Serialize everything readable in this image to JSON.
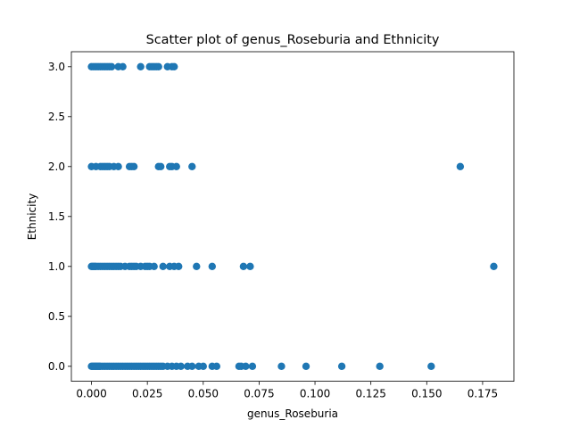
{
  "chart_data": {
    "type": "scatter",
    "title": "Scatter plot of genus_Roseburia and Ethnicity",
    "xlabel": "genus_Roseburia",
    "ylabel": "Ethnicity",
    "xlim": [
      -0.009,
      0.189
    ],
    "ylim": [
      -0.15,
      3.15
    ],
    "xticks": [
      "0.000",
      "0.025",
      "0.050",
      "0.075",
      "0.100",
      "0.125",
      "0.150",
      "0.175"
    ],
    "xtick_values": [
      0,
      0.025,
      0.05,
      0.075,
      0.1,
      0.125,
      0.15,
      0.175
    ],
    "yticks": [
      "0.0",
      "0.5",
      "1.0",
      "1.5",
      "2.0",
      "2.5",
      "3.0"
    ],
    "ytick_values": [
      0,
      0.5,
      1,
      1.5,
      2,
      2.5,
      3
    ],
    "grid": false,
    "marker_color": "#1f77b4",
    "series": [
      {
        "points": [
          [
            0.0,
            0
          ],
          [
            0.0005,
            0
          ],
          [
            0.001,
            0
          ],
          [
            0.0015,
            0
          ],
          [
            0.002,
            0
          ],
          [
            0.0025,
            0
          ],
          [
            0.003,
            0
          ],
          [
            0.0035,
            0
          ],
          [
            0.004,
            0
          ],
          [
            0.005,
            0
          ],
          [
            0.006,
            0
          ],
          [
            0.007,
            0
          ],
          [
            0.008,
            0
          ],
          [
            0.009,
            0
          ],
          [
            0.01,
            0
          ],
          [
            0.011,
            0
          ],
          [
            0.012,
            0
          ],
          [
            0.013,
            0
          ],
          [
            0.014,
            0
          ],
          [
            0.015,
            0
          ],
          [
            0.016,
            0
          ],
          [
            0.017,
            0
          ],
          [
            0.018,
            0
          ],
          [
            0.019,
            0
          ],
          [
            0.02,
            0
          ],
          [
            0.021,
            0
          ],
          [
            0.022,
            0
          ],
          [
            0.023,
            0
          ],
          [
            0.024,
            0
          ],
          [
            0.025,
            0
          ],
          [
            0.026,
            0
          ],
          [
            0.027,
            0
          ],
          [
            0.028,
            0
          ],
          [
            0.029,
            0
          ],
          [
            0.03,
            0
          ],
          [
            0.031,
            0
          ],
          [
            0.032,
            0
          ],
          [
            0.034,
            0
          ],
          [
            0.036,
            0
          ],
          [
            0.038,
            0
          ],
          [
            0.04,
            0
          ],
          [
            0.043,
            0
          ],
          [
            0.045,
            0
          ],
          [
            0.048,
            0
          ],
          [
            0.05,
            0
          ],
          [
            0.054,
            0
          ],
          [
            0.056,
            0
          ],
          [
            0.066,
            0
          ],
          [
            0.067,
            0
          ],
          [
            0.069,
            0
          ],
          [
            0.072,
            0
          ],
          [
            0.085,
            0
          ],
          [
            0.096,
            0
          ],
          [
            0.112,
            0
          ],
          [
            0.129,
            0
          ],
          [
            0.152,
            0
          ],
          [
            0.0,
            1
          ],
          [
            0.0005,
            1
          ],
          [
            0.001,
            1
          ],
          [
            0.0015,
            1
          ],
          [
            0.002,
            1
          ],
          [
            0.003,
            1
          ],
          [
            0.004,
            1
          ],
          [
            0.005,
            1
          ],
          [
            0.006,
            1
          ],
          [
            0.007,
            1
          ],
          [
            0.008,
            1
          ],
          [
            0.009,
            1
          ],
          [
            0.01,
            1
          ],
          [
            0.011,
            1
          ],
          [
            0.012,
            1
          ],
          [
            0.013,
            1
          ],
          [
            0.015,
            1
          ],
          [
            0.017,
            1
          ],
          [
            0.018,
            1
          ],
          [
            0.019,
            1
          ],
          [
            0.02,
            1
          ],
          [
            0.022,
            1
          ],
          [
            0.024,
            1
          ],
          [
            0.025,
            1
          ],
          [
            0.026,
            1
          ],
          [
            0.028,
            1
          ],
          [
            0.032,
            1
          ],
          [
            0.035,
            1
          ],
          [
            0.037,
            1
          ],
          [
            0.039,
            1
          ],
          [
            0.047,
            1
          ],
          [
            0.054,
            1
          ],
          [
            0.068,
            1
          ],
          [
            0.071,
            1
          ],
          [
            0.18,
            1
          ],
          [
            0.0,
            2
          ],
          [
            0.002,
            2
          ],
          [
            0.004,
            2
          ],
          [
            0.005,
            2
          ],
          [
            0.006,
            2
          ],
          [
            0.007,
            2
          ],
          [
            0.008,
            2
          ],
          [
            0.01,
            2
          ],
          [
            0.012,
            2
          ],
          [
            0.017,
            2
          ],
          [
            0.018,
            2
          ],
          [
            0.019,
            2
          ],
          [
            0.03,
            2
          ],
          [
            0.031,
            2
          ],
          [
            0.035,
            2
          ],
          [
            0.036,
            2
          ],
          [
            0.038,
            2
          ],
          [
            0.045,
            2
          ],
          [
            0.165,
            2
          ],
          [
            0.0,
            3
          ],
          [
            0.001,
            3
          ],
          [
            0.002,
            3
          ],
          [
            0.003,
            3
          ],
          [
            0.004,
            3
          ],
          [
            0.005,
            3
          ],
          [
            0.006,
            3
          ],
          [
            0.007,
            3
          ],
          [
            0.008,
            3
          ],
          [
            0.009,
            3
          ],
          [
            0.012,
            3
          ],
          [
            0.014,
            3
          ],
          [
            0.022,
            3
          ],
          [
            0.026,
            3
          ],
          [
            0.027,
            3
          ],
          [
            0.028,
            3
          ],
          [
            0.029,
            3
          ],
          [
            0.03,
            3
          ],
          [
            0.034,
            3
          ],
          [
            0.036,
            3
          ],
          [
            0.037,
            3
          ]
        ]
      }
    ]
  }
}
